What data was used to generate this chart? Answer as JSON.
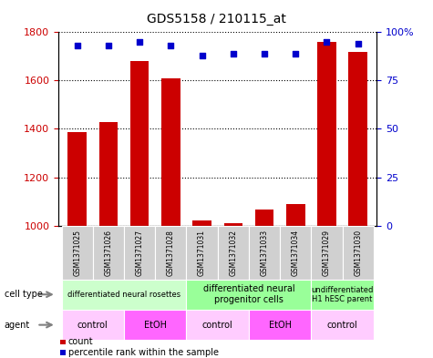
{
  "title": "GDS5158 / 210115_at",
  "samples": [
    "GSM1371025",
    "GSM1371026",
    "GSM1371027",
    "GSM1371028",
    "GSM1371031",
    "GSM1371032",
    "GSM1371033",
    "GSM1371034",
    "GSM1371029",
    "GSM1371030"
  ],
  "counts": [
    1385,
    1430,
    1680,
    1610,
    1020,
    1010,
    1065,
    1090,
    1760,
    1720
  ],
  "percentile_ranks": [
    93,
    93,
    95,
    93,
    88,
    89,
    89,
    89,
    95,
    94
  ],
  "bar_color": "#cc0000",
  "dot_color": "#0000cc",
  "ylim_left": [
    1000,
    1800
  ],
  "ylim_right": [
    0,
    100
  ],
  "yticks_left": [
    1000,
    1200,
    1400,
    1600,
    1800
  ],
  "yticks_right": [
    0,
    25,
    50,
    75,
    100
  ],
  "cell_type_groups": [
    {
      "label": "differentiated neural rosettes",
      "start": 0,
      "end": 4,
      "color": "#ccffcc",
      "fontsize": 6
    },
    {
      "label": "differentiated neural\nprogenitor cells",
      "start": 4,
      "end": 8,
      "color": "#99ff99",
      "fontsize": 7
    },
    {
      "label": "undifferentiated\nH1 hESC parent",
      "start": 8,
      "end": 10,
      "color": "#99ff99",
      "fontsize": 6
    }
  ],
  "agent_groups": [
    {
      "label": "control",
      "start": 0,
      "end": 2,
      "color": "#ffccff"
    },
    {
      "label": "EtOH",
      "start": 2,
      "end": 4,
      "color": "#ff66ff"
    },
    {
      "label": "control",
      "start": 4,
      "end": 6,
      "color": "#ffccff"
    },
    {
      "label": "EtOH",
      "start": 6,
      "end": 8,
      "color": "#ff66ff"
    },
    {
      "label": "control",
      "start": 8,
      "end": 10,
      "color": "#ffccff"
    }
  ],
  "legend_count_color": "#cc0000",
  "legend_percentile_color": "#0000cc",
  "left_label_color": "#cc0000",
  "right_label_color": "#0000cc",
  "sample_box_color": "#d0d0d0",
  "row_label_fontsize": 7,
  "sample_fontsize": 5.5,
  "agent_fontsize": 7
}
